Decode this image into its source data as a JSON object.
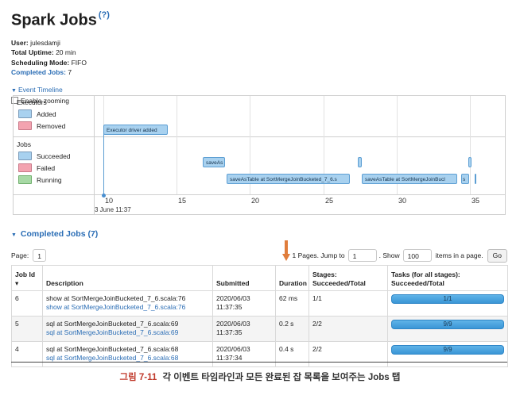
{
  "header": {
    "title": "Spark Jobs",
    "help": "(?)"
  },
  "summary": {
    "user_label": "User:",
    "user_value": "julesdamji",
    "uptime_label": "Total Uptime:",
    "uptime_value": "20 min",
    "mode_label": "Scheduling Mode:",
    "mode_value": "FIFO",
    "completed_label": "Completed Jobs:",
    "completed_value": "7"
  },
  "timeline": {
    "toggle_label": "Event Timeline",
    "zoom_label": "Enable zooming",
    "executors_title": "Executors",
    "executors_legend": [
      {
        "label": "Added",
        "color": "#a8d1ef"
      },
      {
        "label": "Removed",
        "color": "#f3a3b0"
      }
    ],
    "jobs_title": "Jobs",
    "jobs_legend": [
      {
        "label": "Succeeded",
        "color": "#a8d1ef"
      },
      {
        "label": "Failed",
        "color": "#f3a3b0"
      },
      {
        "label": "Running",
        "color": "#a7d9a5"
      }
    ],
    "executor_event": "Executor driver added",
    "job_bars": [
      "saveAs",
      "saveAsTable at SortMergeJoinBucketed_7_6.s",
      "saveAsTable at SortMergeJoinBucl",
      "s"
    ],
    "ticks": [
      "10",
      "15",
      "20",
      "25",
      "30",
      "35"
    ],
    "date_label": "3 June 11:37"
  },
  "completed_section": {
    "title": "Completed Jobs (7)",
    "page_label": "Page:",
    "page_value": "1",
    "pages_text": "1 Pages. Jump to",
    "jump_value": "1",
    "show_label": ". Show",
    "show_value": "100",
    "items_label": "items in a page.",
    "go_label": "Go"
  },
  "table": {
    "headers": {
      "job_id": "Job Id ▾",
      "description": "Description",
      "submitted": "Submitted",
      "duration": "Duration",
      "stages": "Stages: Succeeded/Total",
      "tasks": "Tasks (for all stages): Succeeded/Total"
    },
    "rows": [
      {
        "id": "6",
        "desc": "show at SortMergeJoinBucketed_7_6.scala:76",
        "link": "show at SortMergeJoinBucketed_7_6.scala:76",
        "date": "2020/06/03",
        "time": "11:37:35",
        "duration": "62 ms",
        "stages": "1/1",
        "tasks": "1/1"
      },
      {
        "id": "5",
        "desc": "sql at SortMergeJoinBucketed_7_6.scala:69",
        "link": "sql at SortMergeJoinBucketed_7_6.scala:69",
        "date": "2020/06/03",
        "time": "11:37:35",
        "duration": "0.2 s",
        "stages": "2/2",
        "tasks": "9/9"
      },
      {
        "id": "4",
        "desc": "sql at SortMergeJoinBucketed_7_6.scala:68",
        "link": "sql at SortMergeJoinBucketed_7_6.scala:68",
        "date": "2020/06/03",
        "time": "11:37:34",
        "duration": "0.4 s",
        "stages": "2/2",
        "tasks": "9/9"
      }
    ]
  },
  "caption": {
    "figure": "그림 7-11",
    "text": "각 이벤트 타임라인과 모든 완료된 잡 목록을 보여주는 Jobs 탭"
  },
  "colors": {
    "link": "#2a6db5",
    "accent_arrow": "#e07d3c",
    "progress": "#3a96d6"
  }
}
